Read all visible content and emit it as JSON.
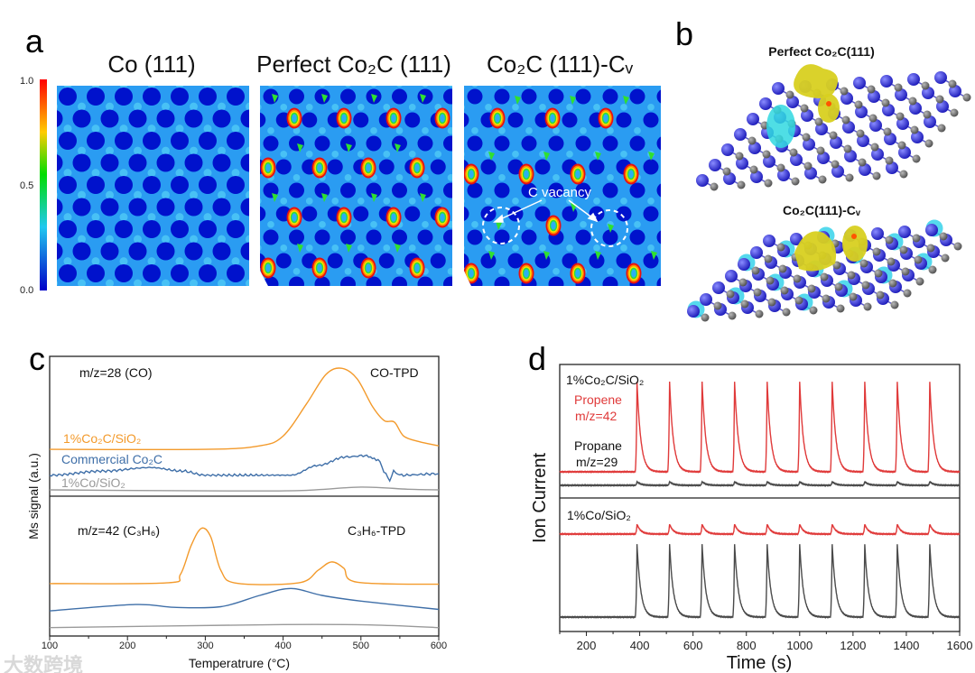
{
  "panel_a": {
    "label": "a",
    "titles": [
      "Co (111)",
      "Perfect Co₂C (111)",
      "Co₂C (111)-Cᵥ"
    ],
    "colorbar": {
      "ticks": [
        "1.0",
        "0.5",
        "0.0"
      ],
      "range": [
        0.0,
        1.0
      ],
      "colors": [
        "#ff0000",
        "#ffff00",
        "#00e000",
        "#20d0f0",
        "#0000c8"
      ]
    },
    "annotation": "C vacancy"
  },
  "panel_b": {
    "label": "b",
    "titles": [
      "Perfect Co₂C(111)",
      "Co₂C(111)-Cᵥ"
    ]
  },
  "panel_c": {
    "label": "c"
  },
  "panel_d": {
    "label": "d"
  },
  "watermark": "大数跨境",
  "chart_data": [
    {
      "type": "line",
      "panel": "c",
      "xlabel": "Temperatrure (°C)",
      "ylabel": "Ms signal (a.u.)",
      "xlim": [
        100,
        600
      ],
      "xticks": [
        "100",
        "200",
        "300",
        "400",
        "500",
        "600"
      ],
      "subplots": [
        {
          "title_left": "m/z=28 (CO)",
          "title_right": "CO-TPD",
          "ylim": [
            0,
            10
          ],
          "series": [
            {
              "name": "1%Co₂C/SiO₂",
              "color": "#f39a2b",
              "points": [
                [
                  100,
                  3.35
                ],
                [
                  300,
                  3.35
                ],
                [
                  370,
                  3.6
                ],
                [
                  400,
                  4.3
                ],
                [
                  430,
                  6.6
                ],
                [
                  455,
                  8.7
                ],
                [
                  475,
                  9.15
                ],
                [
                  495,
                  8.4
                ],
                [
                  515,
                  6.4
                ],
                [
                  530,
                  5.4
                ],
                [
                  543,
                  5.3
                ],
                [
                  555,
                  4.3
                ],
                [
                  575,
                  3.9
                ],
                [
                  600,
                  3.6
                ]
              ]
            },
            {
              "name": "Commercial Co₂C",
              "color": "#3f6fa8",
              "noise": true,
              "points": [
                [
                  100,
                  1.5
                ],
                [
                  170,
                  1.8
                ],
                [
                  230,
                  2.05
                ],
                [
                  270,
                  1.8
                ],
                [
                  300,
                  1.5
                ],
                [
                  410,
                  1.5
                ],
                [
                  445,
                  2.2
                ],
                [
                  480,
                  2.8
                ],
                [
                  505,
                  2.9
                ],
                [
                  522,
                  2.6
                ],
                [
                  532,
                  1.6
                ],
                [
                  537,
                  1.1
                ],
                [
                  542,
                  1.8
                ],
                [
                  550,
                  1.5
                ],
                [
                  600,
                  1.6
                ]
              ]
            },
            {
              "name": "1%Co/SiO₂",
              "color": "#9a9a9a",
              "points": [
                [
                  100,
                  0.45
                ],
                [
                  300,
                  0.38
                ],
                [
                  420,
                  0.4
                ],
                [
                  500,
                  0.65
                ],
                [
                  560,
                  0.5
                ],
                [
                  600,
                  0.45
                ]
              ]
            }
          ]
        },
        {
          "title_left": "m/z=42 (C₃H₆)",
          "title_right": "C₃H₆-TPD",
          "ylim": [
            0,
            10
          ],
          "series": [
            {
              "name": "1%Co₂C/SiO₂",
              "color": "#f39a2b",
              "points": [
                [
                  100,
                  3.75
                ],
                [
                  250,
                  3.8
                ],
                [
                  268,
                  4.4
                ],
                [
                  282,
                  6.5
                ],
                [
                  295,
                  7.7
                ],
                [
                  307,
                  7.1
                ],
                [
                  320,
                  4.7
                ],
                [
                  340,
                  3.78
                ],
                [
                  420,
                  3.8
                ],
                [
                  445,
                  4.7
                ],
                [
                  462,
                  5.3
                ],
                [
                  478,
                  4.85
                ],
                [
                  495,
                  3.85
                ],
                [
                  600,
                  3.7
                ]
              ]
            },
            {
              "name": "Commercial Co₂C",
              "color": "#3f6fa8",
              "points": [
                [
                  100,
                  1.8
                ],
                [
                  210,
                  2.25
                ],
                [
                  260,
                  2.05
                ],
                [
                  320,
                  2.1
                ],
                [
                  370,
                  2.9
                ],
                [
                  410,
                  3.4
                ],
                [
                  450,
                  2.9
                ],
                [
                  500,
                  2.5
                ],
                [
                  600,
                  1.9
                ]
              ]
            },
            {
              "name": "1%Co/SiO₂",
              "color": "#9a9a9a",
              "points": [
                [
                  100,
                  0.6
                ],
                [
                  400,
                  0.82
                ],
                [
                  520,
                  0.78
                ],
                [
                  600,
                  0.6
                ]
              ]
            }
          ]
        }
      ]
    },
    {
      "type": "line",
      "panel": "d",
      "xlabel": "Time (s)",
      "ylabel": "Ion Current",
      "xlim": [
        100,
        1600
      ],
      "xticks": [
        "200",
        "400",
        "600",
        "800",
        "1000",
        "1200",
        "1400",
        "1600"
      ],
      "peak_times": [
        390,
        512,
        634,
        756,
        878,
        1000,
        1122,
        1244,
        1366,
        1488
      ],
      "subplots": [
        {
          "label": "1%Co₂C/SiO₂",
          "ylim": [
            0,
            10
          ],
          "series": [
            {
              "name": "Propene",
              "sub": "m/z=42",
              "color": "#e03a3a",
              "baseline": 1.96,
              "peak_height": 6.76
            },
            {
              "name": "Propane",
              "sub": "m/z=29",
              "color": "#4a4a4a",
              "baseline": 0.95,
              "peak_height": 0.27
            }
          ]
        },
        {
          "label": "1%Co/SiO₂",
          "ylim": [
            0,
            10
          ],
          "series": [
            {
              "name": "Propene",
              "sub": "m/z=42",
              "color": "#e03a3a",
              "baseline": 7.3,
              "peak_height": 0.74
            },
            {
              "name": "Propane",
              "sub": "m/z=29",
              "color": "#4a4a4a",
              "baseline": 1.08,
              "peak_height": 5.47
            }
          ]
        }
      ]
    }
  ]
}
